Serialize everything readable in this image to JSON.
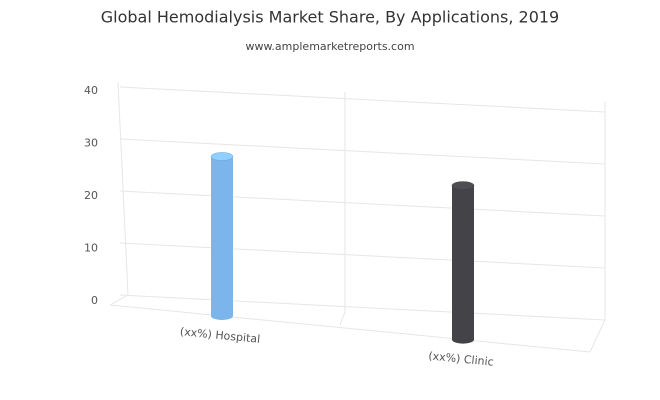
{
  "chart_data": {
    "type": "bar3d",
    "title": "Global Hemodialysis Market Share, By Applications, 2019",
    "subtitle": "www.amplemarketreports.com",
    "categories": [
      "(xx%) Hospital",
      "(xx%) Clinic"
    ],
    "values": [
      29,
      28
    ],
    "colors": [
      "#7cb5ec",
      "#434348"
    ],
    "ylim": [
      0,
      40
    ],
    "yticks": [
      0,
      10,
      20,
      30,
      40
    ],
    "grid": true
  }
}
